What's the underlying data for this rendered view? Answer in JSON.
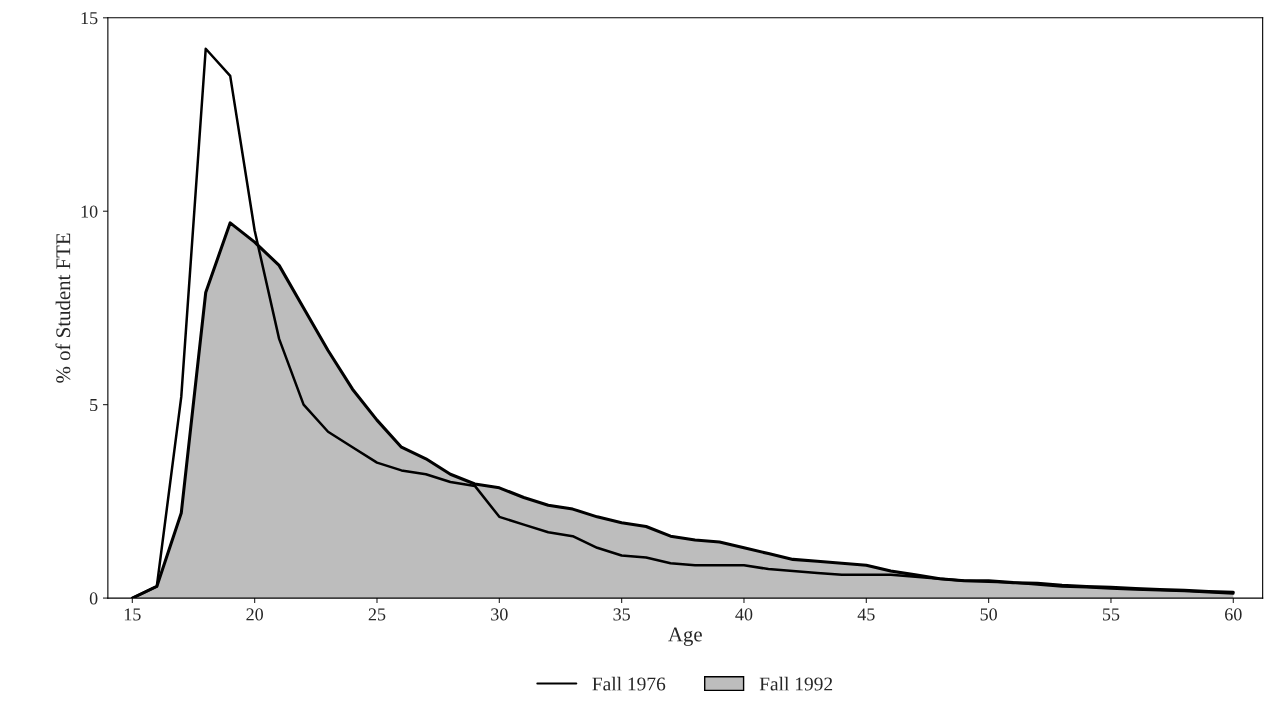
{
  "chart_data": {
    "type": "area",
    "xlabel": "Age",
    "ylabel": "% of Student FTE",
    "x": [
      15,
      16,
      17,
      18,
      19,
      20,
      21,
      22,
      23,
      24,
      25,
      26,
      27,
      28,
      29,
      30,
      31,
      32,
      33,
      34,
      35,
      36,
      37,
      38,
      39,
      40,
      41,
      42,
      43,
      44,
      45,
      46,
      47,
      48,
      49,
      50,
      51,
      52,
      53,
      54,
      55,
      56,
      57,
      58,
      59,
      60
    ],
    "series": [
      {
        "name": "Fall 1976",
        "type": "line",
        "color": "#000000",
        "values": [
          0,
          0.3,
          5.2,
          14.2,
          13.5,
          9.5,
          6.7,
          5.0,
          4.3,
          3.9,
          3.5,
          3.3,
          3.2,
          3.0,
          2.9,
          2.1,
          1.9,
          1.7,
          1.6,
          1.3,
          1.1,
          1.05,
          0.9,
          0.85,
          0.85,
          0.85,
          0.75,
          0.7,
          0.65,
          0.6,
          0.6,
          0.6,
          0.55,
          0.5,
          0.45,
          0.42,
          0.4,
          0.35,
          0.3,
          0.28,
          0.25,
          0.22,
          0.2,
          0.18,
          0.15,
          0.12
        ]
      },
      {
        "name": "Fall 1992",
        "color": "#bdbdbd",
        "values": [
          0,
          0.3,
          2.2,
          7.9,
          9.7,
          9.2,
          8.6,
          7.5,
          6.4,
          5.4,
          4.6,
          3.9,
          3.6,
          3.2,
          2.95,
          2.85,
          2.6,
          2.4,
          2.3,
          2.1,
          1.95,
          1.85,
          1.6,
          1.5,
          1.45,
          1.3,
          1.15,
          1.0,
          0.95,
          0.9,
          0.85,
          0.7,
          0.6,
          0.5,
          0.45,
          0.45,
          0.4,
          0.38,
          0.33,
          0.3,
          0.28,
          0.25,
          0.22,
          0.2,
          0.17,
          0.15
        ]
      }
    ],
    "xlim": [
      14,
      61.2
    ],
    "ylim": [
      0,
      15
    ],
    "xticks": [
      15,
      20,
      25,
      30,
      35,
      40,
      45,
      50,
      55,
      60
    ],
    "yticks": [
      0,
      5,
      10,
      15
    ],
    "legend": "bottom",
    "grid": false
  }
}
